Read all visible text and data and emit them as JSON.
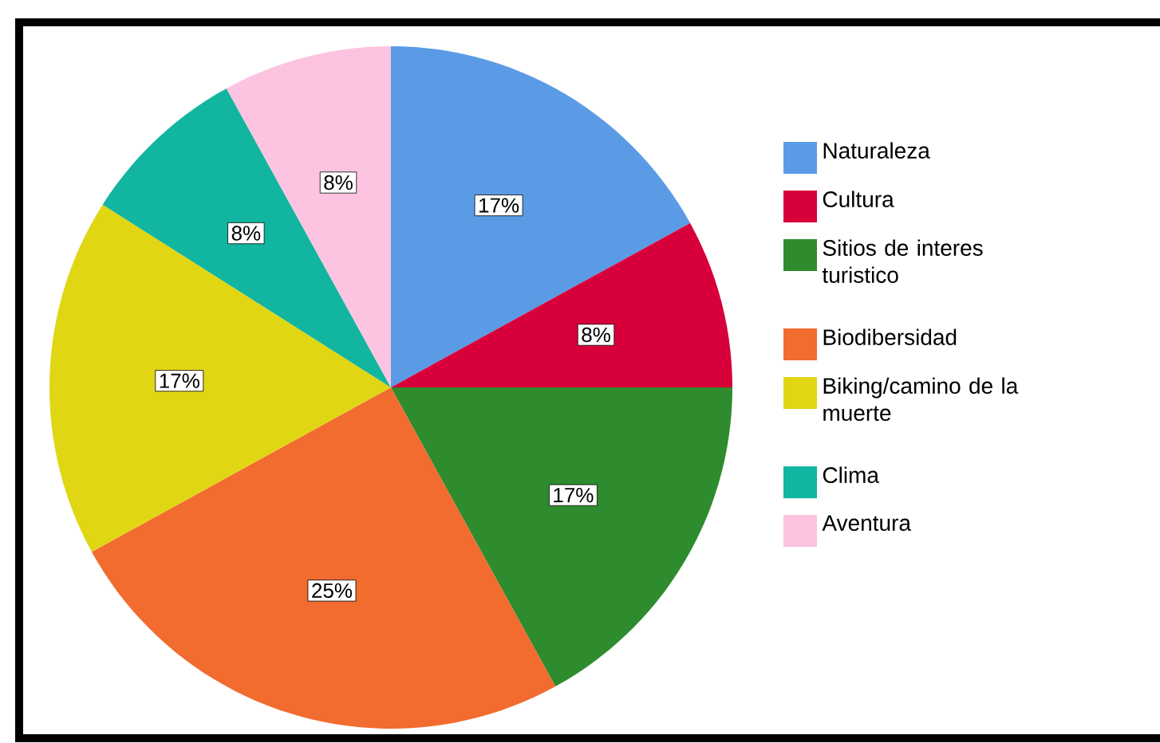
{
  "chart_data": {
    "type": "pie",
    "categories": [
      "Naturaleza",
      "Cultura",
      "Sitios de interes turistico",
      "Biodibersidad",
      "Biking/camino de la muerte",
      "Clima",
      "Aventura"
    ],
    "values": [
      17,
      8,
      17,
      25,
      17,
      8,
      8
    ],
    "value_labels": [
      "17%",
      "8%",
      "17%",
      "25%",
      "17%",
      "8%",
      "8%"
    ],
    "colors": [
      "#5b9be6",
      "#d7003a",
      "#2e8b2e",
      "#f26b2f",
      "#e0d614",
      "#12b5a0",
      "#fcc4e0"
    ],
    "legend": "right"
  }
}
